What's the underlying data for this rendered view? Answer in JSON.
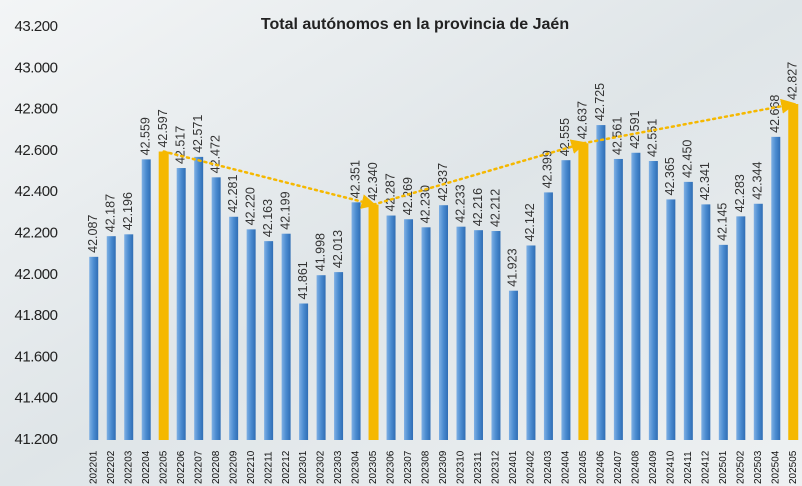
{
  "chart_data": {
    "type": "bar",
    "title": "Total autónomos en la provincia de Jaén",
    "categories": [
      "202201",
      "202202",
      "202203",
      "202204",
      "202205",
      "202206",
      "202207",
      "202208",
      "202209",
      "202210",
      "202211",
      "202212",
      "202301",
      "202302",
      "202303",
      "202304",
      "202305",
      "202306",
      "202307",
      "202308",
      "202309",
      "202310",
      "202311",
      "202312",
      "202401",
      "202402",
      "202403",
      "202404",
      "202405",
      "202406",
      "202407",
      "202408",
      "202409",
      "202410",
      "202411",
      "202412",
      "202501",
      "202502",
      "202503",
      "202504",
      "202505"
    ],
    "values": [
      42087,
      42187,
      42196,
      42559,
      42597,
      42517,
      42571,
      42472,
      42281,
      42220,
      42163,
      42199,
      41861,
      41998,
      42013,
      42351,
      42340,
      42287,
      42269,
      42230,
      42337,
      42233,
      42216,
      42212,
      41923,
      42142,
      42399,
      42555,
      42637,
      42725,
      42561,
      42591,
      42551,
      42365,
      42450,
      42341,
      42145,
      42283,
      42344,
      42668,
      42827
    ],
    "value_labels": [
      "42.087",
      "42.187",
      "42.196",
      "42.559",
      "42.597",
      "42.517",
      "42.571",
      "42.472",
      "42.281",
      "42.220",
      "42.163",
      "42.199",
      "41.861",
      "41.998",
      "42.013",
      "42.351",
      "42.340",
      "42.287",
      "42.269",
      "42.230",
      "42.337",
      "42.233",
      "42.216",
      "42.212",
      "41.923",
      "42.142",
      "42.399",
      "42.555",
      "42.637",
      "42.725",
      "42.561",
      "42.591",
      "42.551",
      "42.365",
      "42.450",
      "42.341",
      "42.145",
      "42.283",
      "42.344",
      "42.668",
      "42.827"
    ],
    "color": "#4a8bd0",
    "highlight_color": "#f5b800",
    "highlight_categories": [
      "202205",
      "202305",
      "202405",
      "202505"
    ],
    "trend_line": {
      "color": "#f5b800",
      "style": "dotted"
    },
    "ylim": [
      41200,
      43200
    ],
    "yticks": [
      {
        "value": 41200,
        "label": "41.200"
      },
      {
        "value": 41400,
        "label": "41.400"
      },
      {
        "value": 41600,
        "label": "41.600"
      },
      {
        "value": 41800,
        "label": "41.800"
      },
      {
        "value": 42000,
        "label": "42.000"
      },
      {
        "value": 42200,
        "label": "42.200"
      },
      {
        "value": 42400,
        "label": "42.400"
      },
      {
        "value": 42600,
        "label": "42.600"
      },
      {
        "value": 42800,
        "label": "42.800"
      },
      {
        "value": 43000,
        "label": "43.000"
      },
      {
        "value": 43200,
        "label": "43.200"
      }
    ],
    "grid": false
  }
}
